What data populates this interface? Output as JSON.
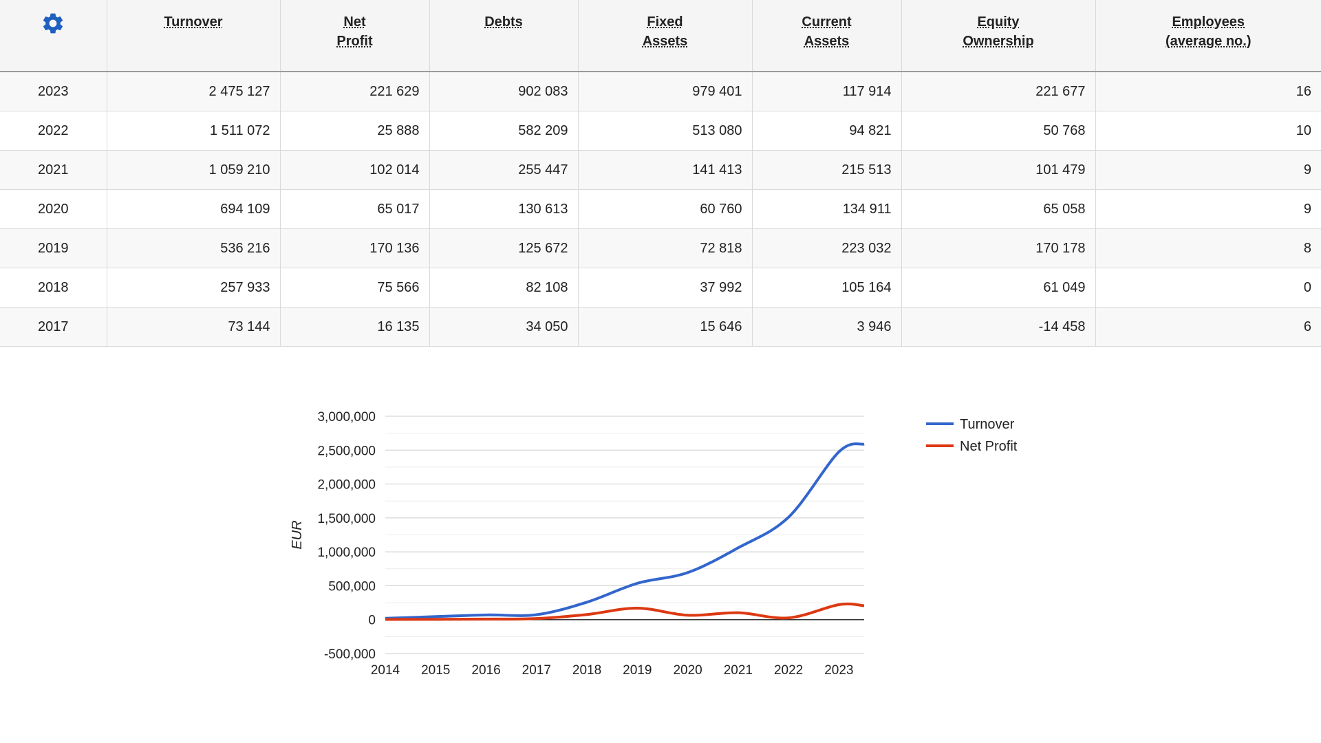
{
  "settings_icon": "gear-icon",
  "accent_color": "#1f5fbf",
  "table": {
    "headers": [
      {
        "l1": "Turnover",
        "l2": ""
      },
      {
        "l1": "Net",
        "l2": "Profit"
      },
      {
        "l1": "Debts",
        "l2": ""
      },
      {
        "l1": "Fixed",
        "l2": "Assets"
      },
      {
        "l1": "Current",
        "l2": "Assets"
      },
      {
        "l1": "Equity",
        "l2": "Ownership"
      },
      {
        "l1": "Employees",
        "l2": "(average no.)"
      }
    ],
    "rows": [
      {
        "year": "2023",
        "cells": [
          "2 475 127",
          "221 629",
          "902 083",
          "979 401",
          "117 914",
          "221 677",
          "16"
        ]
      },
      {
        "year": "2022",
        "cells": [
          "1 511 072",
          "25 888",
          "582 209",
          "513 080",
          "94 821",
          "50 768",
          "10"
        ]
      },
      {
        "year": "2021",
        "cells": [
          "1 059 210",
          "102 014",
          "255 447",
          "141 413",
          "215 513",
          "101 479",
          "9"
        ]
      },
      {
        "year": "2020",
        "cells": [
          "694 109",
          "65 017",
          "130 613",
          "60 760",
          "134 911",
          "65 058",
          "9"
        ]
      },
      {
        "year": "2019",
        "cells": [
          "536 216",
          "170 136",
          "125 672",
          "72 818",
          "223 032",
          "170 178",
          "8"
        ]
      },
      {
        "year": "2018",
        "cells": [
          "257 933",
          "75 566",
          "82 108",
          "37 992",
          "105 164",
          "61 049",
          "0"
        ]
      },
      {
        "year": "2017",
        "cells": [
          "73 144",
          "16 135",
          "34 050",
          "15 646",
          "3 946",
          "-14 458",
          "6"
        ]
      }
    ]
  },
  "chart_data": {
    "type": "line",
    "ylabel": "EUR",
    "xlabel": "",
    "ylim": [
      -500000,
      3000000
    ],
    "yticks": [
      -500000,
      0,
      500000,
      1000000,
      1500000,
      2000000,
      2500000,
      3000000
    ],
    "ytick_labels": [
      "-500,000",
      "0",
      "500,000",
      "1,000,000",
      "1,500,000",
      "2,000,000",
      "2,500,000",
      "3,000,000"
    ],
    "x": [
      2014,
      2015,
      2016,
      2017,
      2018,
      2019,
      2020,
      2021,
      2022,
      2023
    ],
    "x_end": 2023.5,
    "grid": true,
    "legend": "right",
    "series": [
      {
        "name": "Turnover",
        "color": "#3366cc",
        "x": [
          2014,
          2015,
          2016,
          2017,
          2018,
          2019,
          2020,
          2021,
          2022,
          2023,
          2023.5
        ],
        "values": [
          20000,
          45000,
          70000,
          73144,
          257933,
          536216,
          694109,
          1059210,
          1511072,
          2475127,
          2590000
        ]
      },
      {
        "name": "Net Profit",
        "color": "#dc3912",
        "x": [
          2014,
          2015,
          2016,
          2017,
          2018,
          2019,
          2020,
          2021,
          2022,
          2023,
          2023.5
        ],
        "values": [
          3000,
          5000,
          8000,
          16135,
          75566,
          170136,
          65017,
          102014,
          25888,
          221629,
          205000
        ]
      }
    ]
  }
}
